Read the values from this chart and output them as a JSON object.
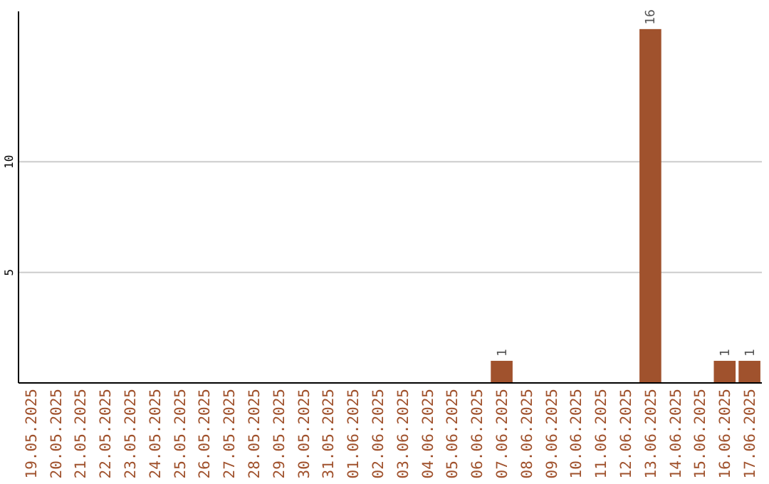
{
  "chart_data": {
    "type": "bar",
    "categories": [
      "19.05.2025",
      "20.05.2025",
      "21.05.2025",
      "22.05.2025",
      "23.05.2025",
      "24.05.2025",
      "25.05.2025",
      "26.05.2025",
      "27.05.2025",
      "28.05.2025",
      "29.05.2025",
      "30.05.2025",
      "31.05.2025",
      "01.06.2025",
      "02.06.2025",
      "03.06.2025",
      "04.06.2025",
      "05.06.2025",
      "06.06.2025",
      "07.06.2025",
      "08.06.2025",
      "09.06.2025",
      "10.06.2025",
      "11.06.2025",
      "12.06.2025",
      "13.06.2025",
      "14.06.2025",
      "15.06.2025",
      "16.06.2025",
      "17.06.2025"
    ],
    "values": [
      0,
      0,
      0,
      0,
      0,
      0,
      0,
      0,
      0,
      0,
      0,
      0,
      0,
      0,
      0,
      0,
      0,
      0,
      0,
      1,
      0,
      0,
      0,
      0,
      0,
      16,
      0,
      0,
      1,
      1
    ],
    "value_labels": [
      null,
      null,
      null,
      null,
      null,
      null,
      null,
      null,
      null,
      null,
      null,
      null,
      null,
      null,
      null,
      null,
      null,
      null,
      null,
      "1",
      null,
      null,
      null,
      null,
      null,
      "16",
      null,
      null,
      "1",
      "1"
    ],
    "color": "#a0522d",
    "ylim": [
      0,
      16.8
    ],
    "yticks": [
      5,
      10
    ],
    "grid": "y"
  }
}
